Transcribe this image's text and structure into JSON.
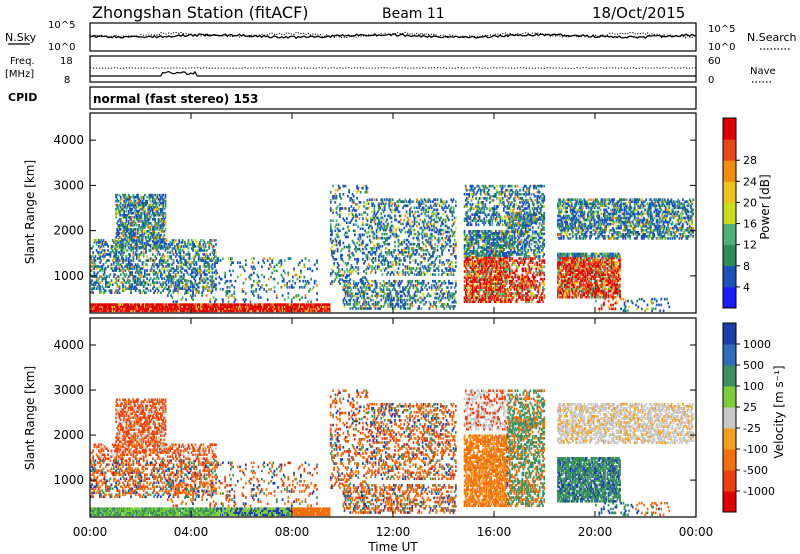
{
  "header": {
    "title": "Zhongshan Station (fitACF)",
    "beam": "Beam 11",
    "date": "18/Oct/2015"
  },
  "strips": {
    "noise": {
      "left_label": "N.Sky",
      "right_label": "N.Search",
      "left_ticks": [
        "10^5",
        "10^0"
      ],
      "right_ticks": [
        "10^5",
        "10^0"
      ]
    },
    "freq": {
      "left_label_top": "Freq.",
      "left_label_bottom": "[MHz]",
      "right_label": "Nave",
      "left_ticks": [
        "18",
        "8"
      ],
      "right_ticks": [
        "60",
        "0"
      ]
    },
    "cpid": {
      "label": "CPID",
      "text": "normal (fast stereo) 153"
    }
  },
  "chart_data": [
    {
      "type": "heatmap",
      "name": "power",
      "ylabel": "Slant Range [km]",
      "yticks": [
        1000,
        2000,
        3000,
        4000
      ],
      "ylim": [
        180,
        4600
      ],
      "colorbar_label": "Power [dB]",
      "colorbar_ticks": [
        "4",
        "8",
        "12",
        "16",
        "20",
        "24",
        "28"
      ],
      "colors": [
        "#1a1aff",
        "#1a52b8",
        "#2e8c5a",
        "#4caf78",
        "#c8dc20",
        "#f0c020",
        "#f08c10",
        "#e84818",
        "#dd0000"
      ]
    },
    {
      "type": "heatmap",
      "name": "velocity",
      "ylabel": "Slant Range [km]",
      "yticks": [
        1000,
        2000,
        3000,
        4000
      ],
      "ylim": [
        180,
        4600
      ],
      "colorbar_label": "Velocity [m s⁻¹]",
      "colorbar_ticks": [
        "1000",
        "500",
        "100",
        "25",
        "-25",
        "-100",
        "-500",
        "-1000"
      ],
      "colors": [
        "#1c3ea8",
        "#2c6fb8",
        "#3a9060",
        "#7ccc3c",
        "#c8c8c8",
        "#f0a020",
        "#f07010",
        "#e84010",
        "#e00000"
      ]
    }
  ],
  "xaxis": {
    "label": "Time UT",
    "ticks": [
      "00:00",
      "04:00",
      "08:00",
      "12:00",
      "16:00",
      "20:00",
      "00:00"
    ]
  }
}
